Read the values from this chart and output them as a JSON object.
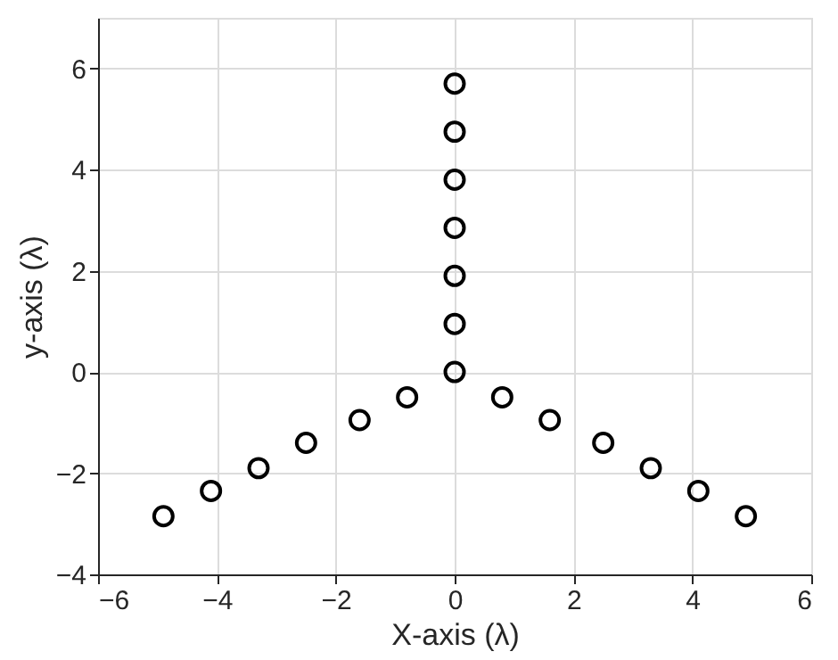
{
  "chart_data": {
    "type": "scatter",
    "xlabel": "X-axis (λ)",
    "ylabel": "y-axis (λ)",
    "x": [
      -4.9,
      -4.1,
      -3.3,
      -2.5,
      -1.6,
      -0.8,
      0,
      0,
      0,
      0,
      0,
      0,
      0,
      0.8,
      1.6,
      2.5,
      3.3,
      4.1,
      4.9
    ],
    "series": [
      {
        "color": "#000000",
        "values": [
          -2.85,
          -2.35,
          -1.9,
          -1.4,
          -0.95,
          -0.5,
          0,
          0.95,
          1.9,
          2.85,
          3.8,
          4.75,
          5.7,
          -0.5,
          -0.95,
          -1.4,
          -1.9,
          -2.35,
          -2.85
        ]
      }
    ],
    "xlim": [
      -6,
      6
    ],
    "xticks": [
      -6,
      -4,
      -2,
      0,
      2,
      4,
      6
    ],
    "ylim": [
      -4,
      7
    ],
    "yticks": [
      -4,
      -2,
      0,
      2,
      4,
      6
    ],
    "grid": true,
    "marker": "circle"
  }
}
